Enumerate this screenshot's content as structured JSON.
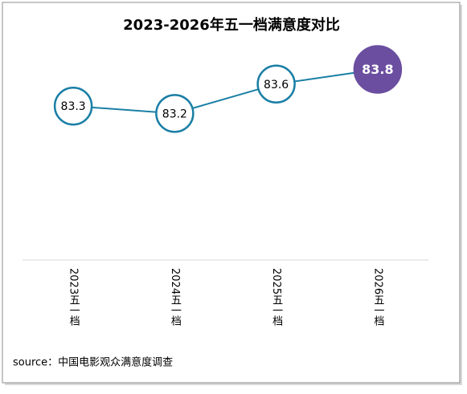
{
  "chart_data": {
    "type": "line",
    "title": "2023-2026年五一档满意度对比",
    "categories": [
      "2023五一档",
      "2024五一档",
      "2025五一档",
      "2026五一档"
    ],
    "values": [
      83.3,
      83.2,
      83.6,
      83.8
    ],
    "color": "#1a7fa6",
    "marker_fill": "#ffffff",
    "highlight_color": "#6b4ea0",
    "ylim": [
      81.2,
      84.2
    ],
    "source": "source：中国电影观众满意度调查"
  }
}
